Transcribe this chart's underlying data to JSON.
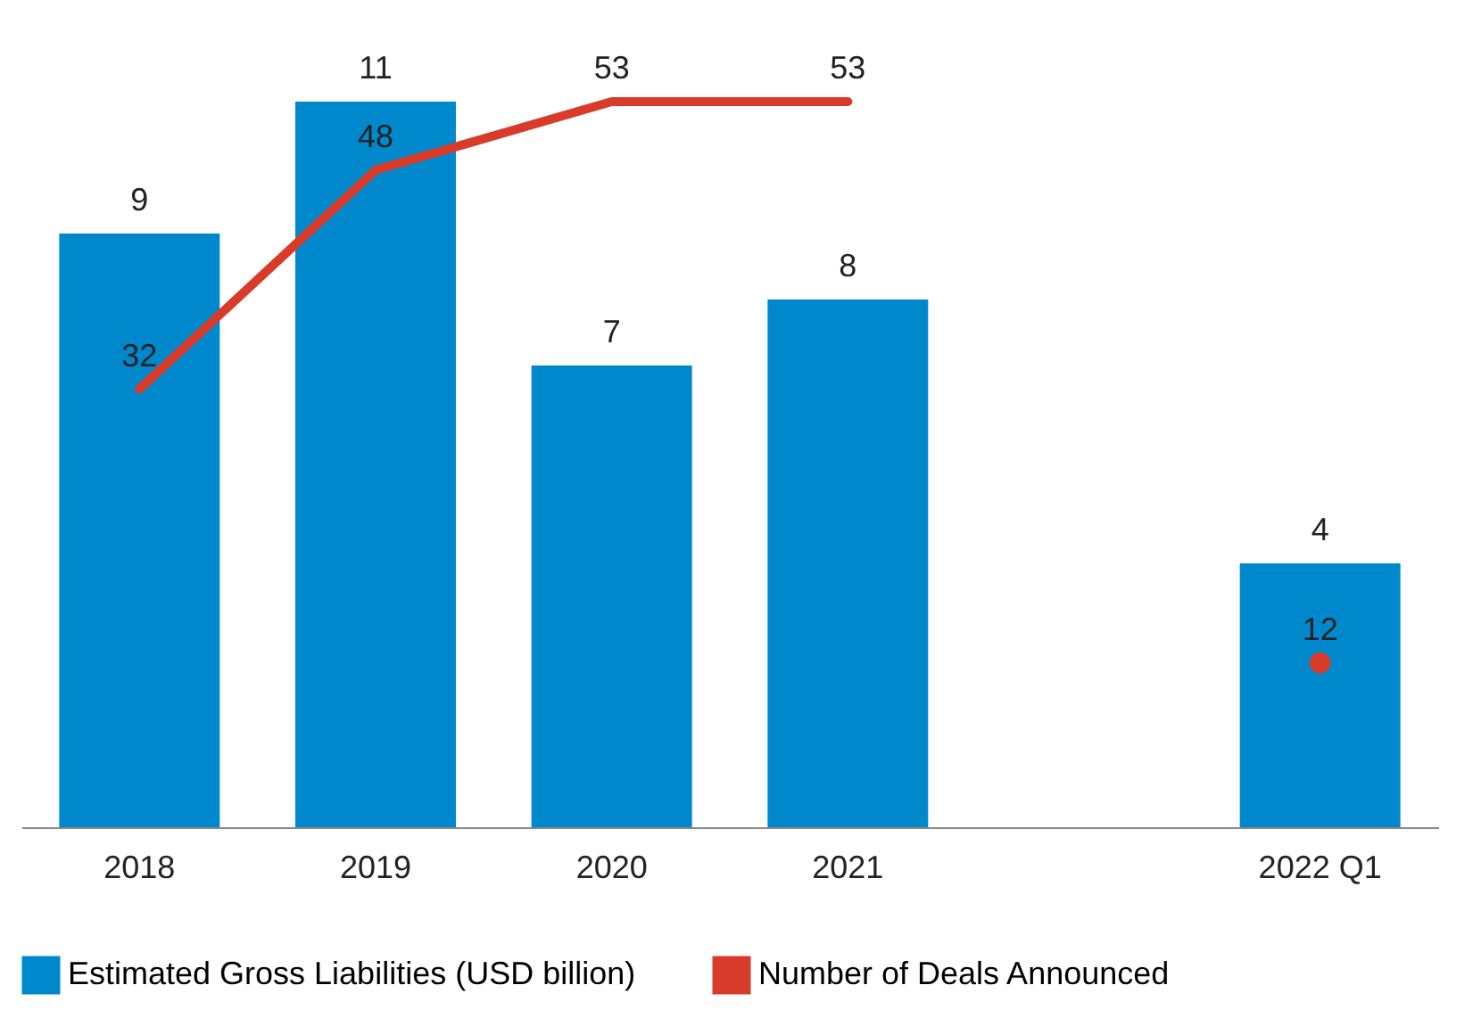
{
  "chart_data": {
    "type": "bar",
    "categories": [
      "2018",
      "2019",
      "2020",
      "2021",
      null,
      "2022 Q1"
    ],
    "series": [
      {
        "name": "Estimated Gross Liabilities (USD billion)",
        "color": "#0088cc",
        "values": [
          9,
          11,
          7,
          8,
          null,
          4
        ]
      },
      {
        "name": "Number of Deals Announced",
        "type": "line",
        "axis": "y2",
        "color": "#d83b2a",
        "values": [
          32,
          48,
          53,
          53,
          null,
          12
        ]
      }
    ],
    "data_labels": true,
    "legend": "bottom",
    "tick_labels": "x"
  }
}
